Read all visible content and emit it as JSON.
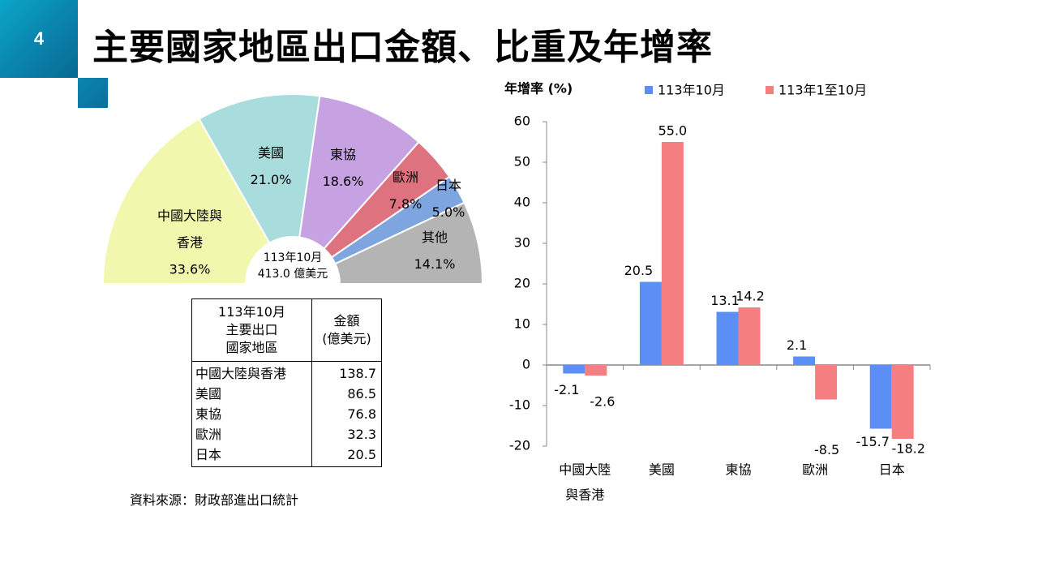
{
  "slide": {
    "number": "4",
    "title": "主要國家地區出口金額、比重及年增率",
    "source": "資料來源：財政部進出口統計"
  },
  "pie": {
    "center_line1": "113年10月",
    "center_line2": "413.0  億美元",
    "labels": [
      {
        "name_lines": [
          "中國大陸與",
          "香港"
        ],
        "pct": "33.6%"
      },
      {
        "name_lines": [
          "美國"
        ],
        "pct": "21.0%"
      },
      {
        "name_lines": [
          "東協"
        ],
        "pct": "18.6%"
      },
      {
        "name_lines": [
          "歐洲"
        ],
        "pct": "7.8%"
      },
      {
        "name_lines": [
          "日本"
        ],
        "pct": "5.0%"
      },
      {
        "name_lines": [
          "其他"
        ],
        "pct": "14.1%"
      }
    ]
  },
  "table": {
    "header_col1": [
      "113年10月",
      "主要出口",
      "國家地區"
    ],
    "header_col2": [
      "金額",
      "(億美元)"
    ],
    "rows": [
      {
        "name": "中國大陸與香港",
        "value": "138.7"
      },
      {
        "name": "美國",
        "value": "86.5"
      },
      {
        "name": "東協",
        "value": "76.8"
      },
      {
        "name": "歐洲",
        "value": "32.3"
      },
      {
        "name": "日本",
        "value": "20.5"
      }
    ]
  },
  "chart_data": [
    {
      "type": "pie",
      "style": "half-donut",
      "categories": [
        "中國大陸與香港",
        "美國",
        "東協",
        "歐洲",
        "日本",
        "其他"
      ],
      "values": [
        33.6,
        21.0,
        18.6,
        7.8,
        5.0,
        14.1
      ],
      "colors": [
        "#f2f7ae",
        "#a9dcdc",
        "#c7a2e2",
        "#de737f",
        "#7fa5e0",
        "#b4b4b4"
      ]
    },
    {
      "type": "bar",
      "ylabel": "年增率 (%)",
      "ylim": [
        -20,
        60
      ],
      "yticks": [
        "60",
        "50",
        "40",
        "30",
        "20",
        "10",
        "0",
        "-10",
        "-20"
      ],
      "categories": [
        [
          "中國大陸",
          "與香港"
        ],
        [
          "美國"
        ],
        [
          "東協"
        ],
        [
          "歐洲"
        ],
        [
          "日本"
        ]
      ],
      "series": [
        {
          "name": "113年10月",
          "color": "#5b8ff5",
          "values": [
            -2.1,
            20.5,
            13.1,
            2.1,
            -15.7
          ],
          "labels": [
            "-2.1",
            "20.5",
            "13.1",
            "2.1",
            "-15.7"
          ]
        },
        {
          "name": "113年1至10月",
          "color": "#f57f80",
          "values": [
            -2.6,
            55.0,
            14.2,
            -8.5,
            -18.2
          ],
          "labels": [
            "-2.6",
            "55.0",
            "14.2",
            "-8.5",
            "-18.2"
          ]
        }
      ],
      "legend": "top"
    }
  ]
}
